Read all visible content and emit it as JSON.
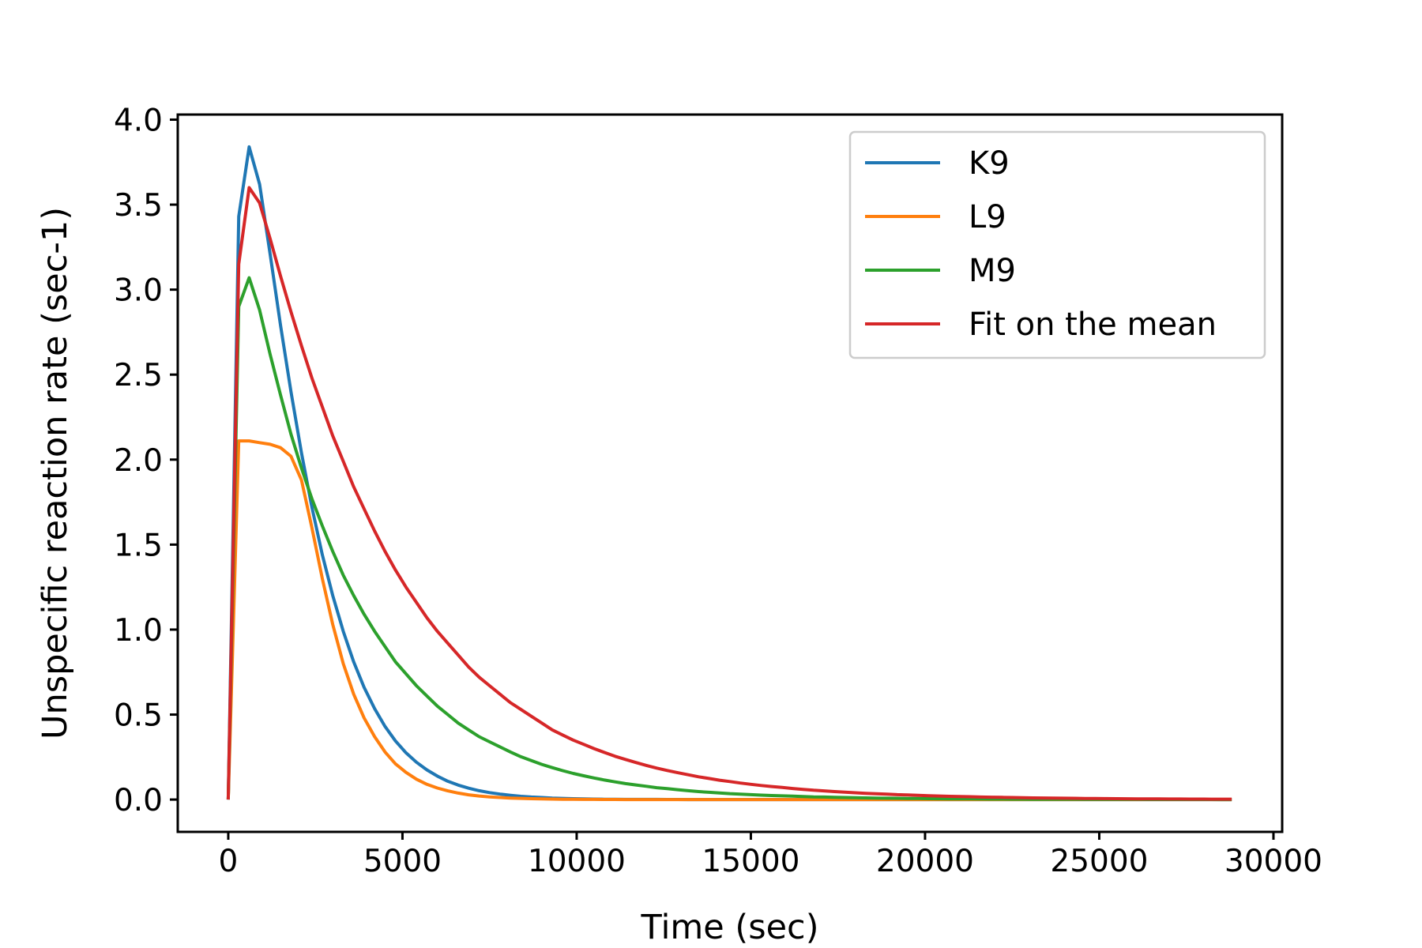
{
  "chart_data": {
    "type": "line",
    "title": "",
    "xlabel": "Time (sec)",
    "ylabel": "Unspecific reaction rate (sec-1)",
    "xlim": [
      -1450,
      30250
    ],
    "ylim": [
      -0.19,
      4.03
    ],
    "xticks": [
      0,
      5000,
      10000,
      15000,
      20000,
      25000,
      30000
    ],
    "xtick_labels": [
      "0",
      "5000",
      "10000",
      "15000",
      "20000",
      "25000",
      "30000"
    ],
    "yticks": [
      0.0,
      0.5,
      1.0,
      1.5,
      2.0,
      2.5,
      3.0,
      3.5,
      4.0
    ],
    "ytick_labels": [
      "0.0",
      "0.5",
      "1.0",
      "1.5",
      "2.0",
      "2.5",
      "3.0",
      "3.5",
      "4.0"
    ],
    "grid": false,
    "legend_position": "top-right",
    "x": [
      0,
      300,
      600,
      900,
      1200,
      1500,
      1800,
      2100,
      2400,
      2700,
      3000,
      3300,
      3600,
      3900,
      4200,
      4500,
      4800,
      5100,
      5400,
      5700,
      6000,
      6300,
      6600,
      6900,
      7200,
      7500,
      7800,
      8100,
      8400,
      8700,
      9000,
      9300,
      9600,
      9900,
      10200,
      10500,
      10800,
      11100,
      11400,
      11700,
      12000,
      12300,
      12600,
      12900,
      13200,
      13500,
      13800,
      14100,
      14400,
      14700,
      15000,
      15300,
      15600,
      15900,
      16200,
      16500,
      16800,
      17100,
      17400,
      17700,
      18000,
      18300,
      18600,
      18900,
      19200,
      19500,
      19800,
      20100,
      20400,
      20700,
      21000,
      21300,
      21600,
      21900,
      22200,
      22500,
      22800,
      23100,
      23400,
      23700,
      24000,
      24300,
      24600,
      24900,
      25200,
      25500,
      25800,
      26100,
      26400,
      26700,
      27000,
      27300,
      27600,
      27900,
      28200,
      28500,
      28800
    ],
    "series": [
      {
        "name": "K9",
        "color": "#1f77b4",
        "values": [
          0,
          3.43,
          3.84,
          3.62,
          3.21,
          2.79,
          2.4,
          2.04,
          1.72,
          1.44,
          1.2,
          0.99,
          0.81,
          0.66,
          0.535,
          0.43,
          0.345,
          0.275,
          0.22,
          0.175,
          0.138,
          0.108,
          0.085,
          0.067,
          0.052,
          0.041,
          0.032,
          0.025,
          0.019,
          0.015,
          0.012,
          0.009,
          0.007,
          0.005,
          0.004,
          0.003,
          0.002,
          0.002,
          0.001,
          0.001,
          0.001,
          0.001,
          0.0005,
          0.0004,
          0.0003,
          0.0002,
          0.0002,
          0.0001,
          0.0001,
          0.0001,
          0.0001,
          0,
          0,
          0,
          0,
          0,
          0,
          0,
          0,
          0,
          0,
          0,
          0,
          0,
          0,
          0,
          0,
          0,
          0,
          0,
          0,
          0,
          0,
          0,
          0,
          0,
          0,
          0,
          0,
          0,
          0,
          0,
          0,
          0,
          0,
          0,
          0,
          0,
          0,
          0,
          0,
          0,
          0,
          0,
          0,
          0,
          0
        ]
      },
      {
        "name": "L9",
        "color": "#ff7f0e",
        "values": [
          0,
          2.11,
          2.11,
          2.1,
          2.09,
          2.07,
          2.02,
          1.88,
          1.6,
          1.3,
          1.03,
          0.8,
          0.62,
          0.48,
          0.37,
          0.28,
          0.21,
          0.16,
          0.12,
          0.09,
          0.068,
          0.051,
          0.038,
          0.028,
          0.021,
          0.016,
          0.012,
          0.009,
          0.007,
          0.005,
          0.004,
          0.003,
          0.002,
          0.0015,
          0.001,
          0.0008,
          0.0006,
          0.0005,
          0.0003,
          0.0002,
          0.0002,
          0.0001,
          0.0001,
          0.0001,
          0,
          0,
          0,
          0,
          0,
          0,
          0,
          0,
          0,
          0,
          0,
          0,
          0,
          0,
          0,
          0,
          0,
          0,
          0,
          0,
          0,
          0,
          0,
          0,
          0,
          0,
          0,
          0,
          0,
          0,
          0,
          0,
          0,
          0,
          0,
          0,
          0,
          0,
          0,
          0,
          0,
          0,
          0,
          0,
          0,
          0,
          0,
          0,
          0,
          0,
          0,
          0,
          0
        ]
      },
      {
        "name": "M9",
        "color": "#2ca02c",
        "values": [
          0,
          2.9,
          3.07,
          2.88,
          2.62,
          2.38,
          2.15,
          1.95,
          1.77,
          1.61,
          1.46,
          1.32,
          1.2,
          1.09,
          0.99,
          0.9,
          0.81,
          0.74,
          0.67,
          0.61,
          0.55,
          0.5,
          0.45,
          0.41,
          0.37,
          0.34,
          0.31,
          0.28,
          0.252,
          0.229,
          0.207,
          0.188,
          0.17,
          0.154,
          0.14,
          0.127,
          0.115,
          0.104,
          0.094,
          0.086,
          0.078,
          0.07,
          0.064,
          0.058,
          0.052,
          0.047,
          0.043,
          0.039,
          0.035,
          0.032,
          0.029,
          0.026,
          0.024,
          0.022,
          0.02,
          0.018,
          0.016,
          0.015,
          0.013,
          0.012,
          0.011,
          0.01,
          0.009,
          0.008,
          0.0073,
          0.0066,
          0.006,
          0.0054,
          0.0049,
          0.0045,
          0.004,
          0.0037,
          0.0033,
          0.003,
          0.0027,
          0.0025,
          0.0022,
          0.002,
          0.0018,
          0.0017,
          0.0015,
          0.0014,
          0.0012,
          0.0011,
          0.001,
          0.0009,
          0.0008,
          0.0008,
          0.0007,
          0.0006,
          0.0006,
          0.0005,
          0.0005,
          0.0004,
          0.0004,
          0.0003,
          0.0003
        ]
      },
      {
        "name": "Fit on the mean",
        "color": "#d62728",
        "values": [
          0,
          3.15,
          3.6,
          3.51,
          3.3,
          3.08,
          2.87,
          2.67,
          2.48,
          2.31,
          2.14,
          1.99,
          1.84,
          1.71,
          1.58,
          1.46,
          1.35,
          1.25,
          1.16,
          1.07,
          0.99,
          0.92,
          0.85,
          0.78,
          0.72,
          0.67,
          0.62,
          0.57,
          0.53,
          0.49,
          0.45,
          0.41,
          0.38,
          0.35,
          0.325,
          0.3,
          0.277,
          0.255,
          0.236,
          0.218,
          0.201,
          0.185,
          0.171,
          0.158,
          0.146,
          0.134,
          0.124,
          0.114,
          0.106,
          0.097,
          0.09,
          0.083,
          0.077,
          0.071,
          0.065,
          0.06,
          0.055,
          0.051,
          0.047,
          0.044,
          0.04,
          0.037,
          0.034,
          0.032,
          0.029,
          0.027,
          0.025,
          0.023,
          0.021,
          0.019,
          0.018,
          0.017,
          0.015,
          0.014,
          0.013,
          0.012,
          0.011,
          0.01,
          0.0093,
          0.0086,
          0.0079,
          0.0073,
          0.0067,
          0.0062,
          0.0057,
          0.0053,
          0.0049,
          0.0045,
          0.0041,
          0.0038,
          0.0035,
          0.0032,
          0.003,
          0.0028,
          0.0025,
          0.0023,
          0.0022
        ]
      }
    ]
  }
}
